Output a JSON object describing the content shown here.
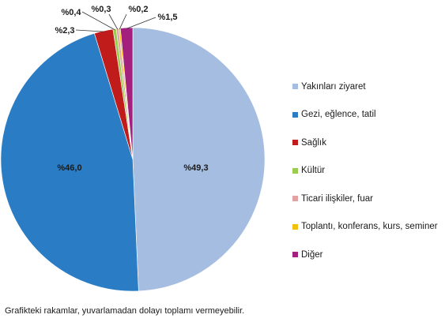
{
  "chart_data": {
    "type": "pie",
    "start_angle_deg": 0,
    "direction": "clockwise",
    "slices": [
      {
        "label": "Yakınları ziyaret",
        "value": 49.3,
        "data_label": "%49,3",
        "color": "#a5bde0"
      },
      {
        "label": "Gezi, eğlence, tatil",
        "value": 46.0,
        "data_label": "%46,0",
        "color": "#2a7dc5"
      },
      {
        "label": "Sağlık",
        "value": 2.3,
        "data_label": "%2,3",
        "color": "#c01c1c"
      },
      {
        "label": "Kültür",
        "value": 0.4,
        "data_label": "%0,4",
        "color": "#9bcb50"
      },
      {
        "label": "Ticari ilişkiler, fuar",
        "value": 0.3,
        "data_label": "%0,3",
        "color": "#e3a2a2"
      },
      {
        "label": "Toplantı, konferans, kurs, seminer",
        "value": 0.2,
        "data_label": "%0,2",
        "color": "#f2c10f"
      },
      {
        "label": "Diğer",
        "value": 1.5,
        "data_label": "%1,5",
        "color": "#a4207e"
      }
    ],
    "legend_placement": "right"
  },
  "footnote": "Grafikteki rakamlar, yuvarlamadan dolayı toplamı vermeyebilir."
}
